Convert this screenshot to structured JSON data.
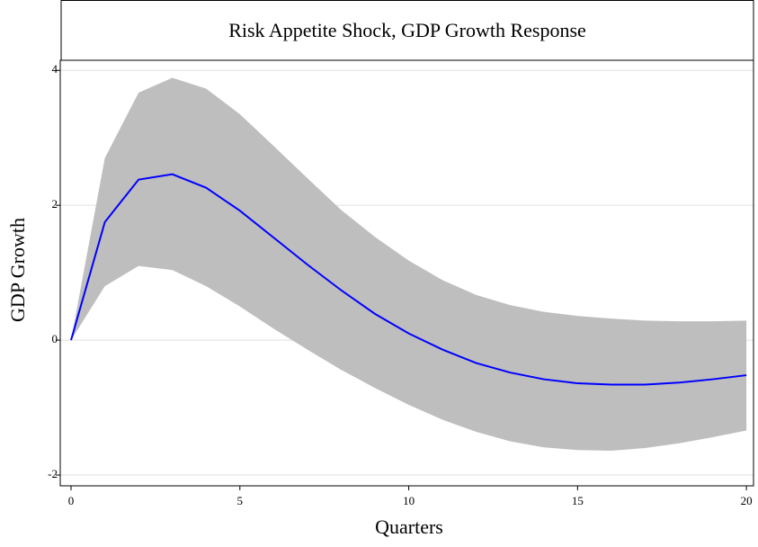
{
  "chart_data": {
    "type": "line",
    "title": "Risk Appetite Shock, GDP Growth Response",
    "x_label": "Quarters",
    "y_label": "GDP Growth",
    "x": [
      0,
      1,
      2,
      3,
      4,
      5,
      6,
      7,
      8,
      9,
      10,
      11,
      12,
      13,
      14,
      15,
      16,
      17,
      18,
      19,
      20
    ],
    "series": [
      {
        "color": "#0000ff",
        "values": [
          0,
          1.75,
          2.38,
          2.46,
          2.26,
          1.92,
          1.52,
          1.12,
          0.74,
          0.39,
          0.1,
          -0.14,
          -0.34,
          -0.48,
          -0.58,
          -0.64,
          -0.66,
          -0.66,
          -0.63,
          -0.58,
          -0.52
        ]
      }
    ],
    "band": {
      "color": "#bebebe",
      "upper": [
        0,
        2.7,
        3.67,
        3.89,
        3.73,
        3.35,
        2.88,
        2.4,
        1.93,
        1.53,
        1.18,
        0.89,
        0.67,
        0.52,
        0.42,
        0.36,
        0.32,
        0.29,
        0.28,
        0.28,
        0.29
      ],
      "lower": [
        0,
        0.8,
        1.1,
        1.04,
        0.8,
        0.5,
        0.17,
        -0.14,
        -0.44,
        -0.71,
        -0.96,
        -1.18,
        -1.36,
        -1.5,
        -1.59,
        -1.63,
        -1.64,
        -1.6,
        -1.53,
        -1.44,
        -1.34
      ]
    },
    "xlim": [
      -0.32,
      20.21
    ],
    "ylim": [
      -2.16,
      4.15
    ],
    "xticks": [
      0,
      5,
      10,
      15,
      20
    ],
    "yticks": [
      -2,
      0,
      2,
      4
    ],
    "grid": true
  }
}
